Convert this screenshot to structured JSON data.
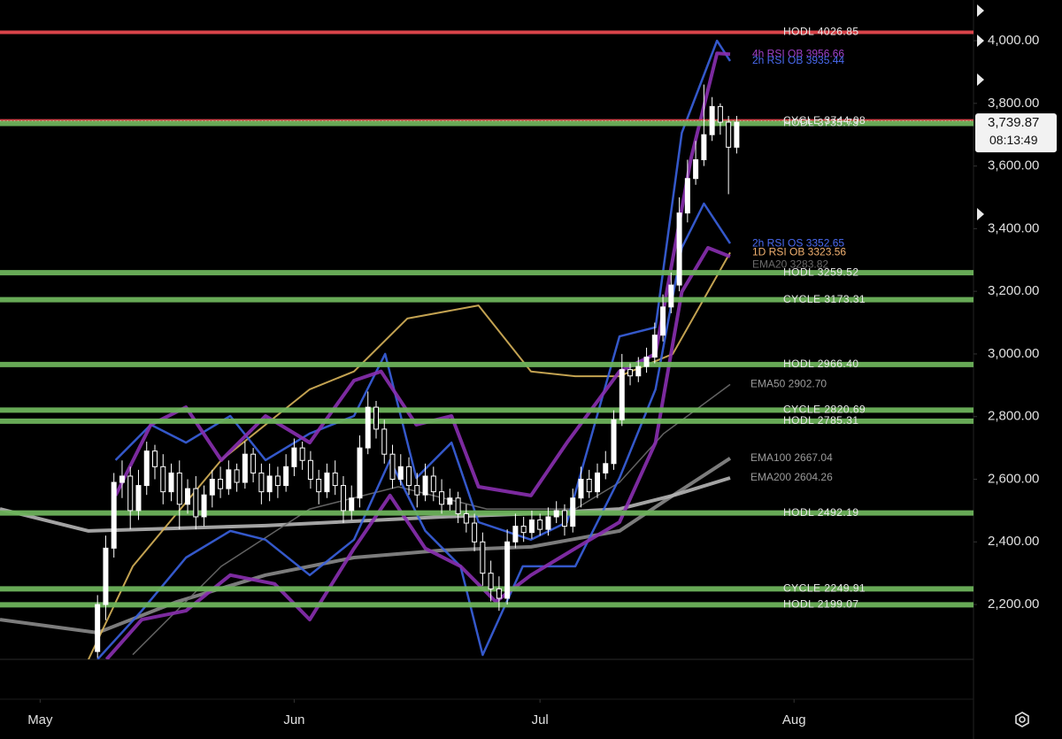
{
  "chart_data": {
    "type": "candlestick",
    "candle_color": "#ffffff",
    "xlim": [
      -4.9,
      113.9
    ],
    "ylim": [
      2025,
      4130
    ],
    "xticks": [
      {
        "value": 0,
        "label": "May"
      },
      {
        "value": 31,
        "label": "Jun"
      },
      {
        "value": 61,
        "label": "Jul"
      },
      {
        "value": 92,
        "label": "Aug"
      }
    ],
    "yticks": [
      {
        "value": 2200,
        "label": "2,200.00"
      },
      {
        "value": 2400,
        "label": "2,400.00"
      },
      {
        "value": 2600,
        "label": "2,600.00"
      },
      {
        "value": 2800,
        "label": "2,800.00"
      },
      {
        "value": 3000,
        "label": "3,000.00"
      },
      {
        "value": 3200,
        "label": "3,200.00"
      },
      {
        "value": 3400,
        "label": "3,400.00"
      },
      {
        "value": 3600,
        "label": "3,600.00"
      },
      {
        "value": 3800,
        "label": "3,800.00"
      },
      {
        "value": 4000,
        "label": "4,000.00"
      }
    ],
    "x": [
      7,
      8,
      9,
      10,
      11,
      12,
      13,
      14,
      15,
      16,
      17,
      18,
      19,
      20,
      21,
      22,
      23,
      24,
      25,
      26,
      27,
      28,
      29,
      30,
      31,
      32,
      33,
      34,
      35,
      36,
      37,
      38,
      39,
      40,
      41,
      42,
      43,
      44,
      45,
      46,
      47,
      48,
      49,
      50,
      51,
      52,
      53,
      54,
      55,
      56,
      57,
      58,
      59,
      60,
      61,
      62,
      63,
      64,
      65,
      66,
      67,
      68,
      69,
      70,
      71,
      72,
      73,
      74,
      75,
      76,
      77,
      78,
      79,
      80,
      81,
      82,
      83,
      84,
      85
    ],
    "open": [
      2050,
      2200,
      2380,
      2590,
      2610,
      2500,
      2580,
      2690,
      2640,
      2560,
      2620,
      2520,
      2570,
      2480,
      2550,
      2600,
      2570,
      2630,
      2590,
      2680,
      2620,
      2560,
      2610,
      2580,
      2640,
      2700,
      2660,
      2600,
      2560,
      2620,
      2580,
      2500,
      2540,
      2700,
      2830,
      2760,
      2680,
      2600,
      2640,
      2580,
      2550,
      2610,
      2560,
      2520,
      2540,
      2490,
      2460,
      2400,
      2300,
      2250,
      2220,
      2400,
      2450,
      2430,
      2470,
      2440,
      2480,
      2500,
      2450,
      2540,
      2600,
      2560,
      2620,
      2650,
      2790,
      2950,
      2930,
      2960,
      2990,
      3060,
      3150,
      3220,
      3450,
      3560,
      3620,
      3700,
      3790,
      3740,
      3660
    ],
    "high": [
      2230,
      2420,
      2620,
      2660,
      2640,
      2630,
      2720,
      2710,
      2680,
      2650,
      2660,
      2600,
      2610,
      2580,
      2630,
      2640,
      2660,
      2650,
      2720,
      2700,
      2650,
      2650,
      2640,
      2680,
      2730,
      2720,
      2690,
      2630,
      2650,
      2660,
      2610,
      2580,
      2740,
      2880,
      2850,
      2790,
      2710,
      2680,
      2670,
      2620,
      2650,
      2640,
      2600,
      2570,
      2560,
      2520,
      2490,
      2430,
      2340,
      2290,
      2440,
      2490,
      2480,
      2500,
      2490,
      2510,
      2530,
      2520,
      2570,
      2640,
      2630,
      2650,
      2690,
      2820,
      3000,
      2970,
      2990,
      3020,
      3100,
      3190,
      3260,
      3500,
      3620,
      3680,
      3860,
      3820,
      3800,
      3760,
      3760
    ],
    "low": [
      2030,
      2150,
      2350,
      2540,
      2440,
      2470,
      2550,
      2600,
      2520,
      2530,
      2440,
      2490,
      2440,
      2450,
      2510,
      2540,
      2550,
      2560,
      2570,
      2590,
      2520,
      2530,
      2540,
      2560,
      2610,
      2630,
      2570,
      2520,
      2540,
      2550,
      2460,
      2470,
      2510,
      2680,
      2730,
      2650,
      2570,
      2580,
      2550,
      2510,
      2530,
      2530,
      2490,
      2500,
      2460,
      2430,
      2370,
      2260,
      2210,
      2180,
      2200,
      2380,
      2400,
      2410,
      2420,
      2420,
      2460,
      2420,
      2430,
      2510,
      2540,
      2540,
      2600,
      2630,
      2770,
      2900,
      2910,
      2940,
      2970,
      3040,
      3130,
      3200,
      3420,
      3540,
      3600,
      3680,
      3700,
      3510,
      3640
    ],
    "close": [
      2200,
      2380,
      2590,
      2610,
      2500,
      2580,
      2690,
      2640,
      2560,
      2620,
      2520,
      2570,
      2480,
      2550,
      2600,
      2570,
      2630,
      2590,
      2680,
      2620,
      2560,
      2610,
      2580,
      2640,
      2700,
      2660,
      2600,
      2560,
      2620,
      2580,
      2500,
      2540,
      2700,
      2830,
      2760,
      2680,
      2600,
      2640,
      2580,
      2550,
      2610,
      2560,
      2520,
      2540,
      2490,
      2460,
      2400,
      2300,
      2250,
      2220,
      2400,
      2450,
      2430,
      2470,
      2440,
      2480,
      2500,
      2450,
      2540,
      2600,
      2560,
      2620,
      2650,
      2790,
      2950,
      2930,
      2960,
      2990,
      3060,
      3150,
      3220,
      3450,
      3560,
      3620,
      3700,
      3790,
      3740,
      3660,
      3739.87
    ],
    "lines": [
      {
        "color": "#8a8a8a",
        "x": [
          -4.9,
          7.0,
          16.7,
          27.5,
          38.3,
          49.1,
          59.9,
          70.7,
          77.2,
          84.2
        ],
        "values": [
          2152,
          2110,
          2209,
          2294,
          2350,
          2373,
          2384,
          2435,
          2548,
          2667.04
        ]
      },
      {
        "color": "#b5b5b5",
        "x": [
          -4.9,
          5.9,
          27.5,
          49.1,
          60,
          70.7,
          77.2,
          84.2
        ],
        "values": [
          2505,
          2435,
          2452,
          2480,
          2490,
          2505,
          2548,
          2604.26
        ]
      },
      {
        "color": "#6d6d6d",
        "x": [
          11.3,
          22.1,
          32.9,
          43.7,
          54.5,
          65.3,
          70.7,
          76.1,
          84.2
        ],
        "values": [
          2040,
          2322,
          2505,
          2576,
          2505,
          2505,
          2590,
          2746,
          2902.7
        ]
      },
      {
        "color": "#d8b45a",
        "x": [
          5.9,
          11.3,
          22.1,
          32.9,
          38.3,
          44.8,
          53.5,
          59.9,
          65.3,
          70.7,
          77.2,
          84.2
        ],
        "values": [
          2025,
          2322,
          2661,
          2887,
          2944,
          3113,
          3155,
          2944,
          2929,
          2929,
          3000,
          3323.56
        ]
      },
      {
        "color": "#3a62e0",
        "x": [
          9.2,
          13.5,
          17.8,
          23.2,
          27.5,
          32.9,
          38.3,
          42.1,
          45.9,
          50.2,
          53.5,
          59.9,
          64.3,
          70.7,
          75.1,
          78.3,
          82.6,
          84.2
        ],
        "values": [
          2661,
          2774,
          2717,
          2802,
          2661,
          2746,
          2802,
          3000,
          2604,
          2717,
          2463,
          2407,
          2463,
          3056,
          3085,
          3706,
          4000,
          3935.44
        ]
      },
      {
        "color": "#3a62e0",
        "x": [
          7.0,
          12.4,
          17.8,
          23.2,
          27.5,
          32.9,
          38.3,
          42.7,
          47.0,
          51.3,
          54.0,
          58.9,
          65.3,
          70.7,
          75.1,
          78.3,
          81.0,
          84.2
        ],
        "values": [
          2025,
          2180,
          2350,
          2435,
          2407,
          2294,
          2407,
          2661,
          2435,
          2322,
          2039,
          2322,
          2322,
          2604,
          2887,
          3339,
          3480,
          3352.65
        ]
      },
      {
        "color": "#8a2fb0",
        "x": [
          9.2,
          13.5,
          17.8,
          22.1,
          27.5,
          32.9,
          38.3,
          41.6,
          45.9,
          50.2,
          53.5,
          59.9,
          64.3,
          70.7,
          75.1,
          79.4,
          82.6,
          84.2
        ],
        "values": [
          2548,
          2774,
          2830,
          2661,
          2802,
          2717,
          2915,
          2944,
          2774,
          2802,
          2576,
          2548,
          2717,
          2944,
          3000,
          3622,
          3960,
          3956.66
        ]
      },
      {
        "color": "#8a2fb0",
        "x": [
          8.1,
          12.4,
          17.8,
          23.2,
          28.6,
          32.9,
          38.3,
          42.7,
          47.0,
          51.3,
          55.6,
          59.9,
          65.3,
          70.7,
          75.1,
          78.3,
          81.5,
          84.2
        ],
        "values": [
          2025,
          2152,
          2180,
          2294,
          2266,
          2152,
          2379,
          2548,
          2379,
          2322,
          2209,
          2294,
          2379,
          2463,
          2717,
          3198,
          3339,
          3311
        ]
      }
    ],
    "levels": [
      {
        "label": "HODL 4026.85",
        "value": 4026.85,
        "color": "#e5484f"
      },
      {
        "label": "CYCLE 3744.08",
        "value": 3744.08,
        "color": "#e5484f"
      },
      {
        "label": "HODL 3735.73",
        "value": 3735.73,
        "color": "#6db35b"
      },
      {
        "label": "HODL 3259.52",
        "value": 3259.52,
        "color": "#6db35b"
      },
      {
        "label": "CYCLE 3173.31",
        "value": 3173.31,
        "color": "#6db35b"
      },
      {
        "label": "HODL 2966.40",
        "value": 2966.4,
        "color": "#6db35b"
      },
      {
        "label": "CYCLE 2820.69",
        "value": 2820.69,
        "color": "#6db35b"
      },
      {
        "label": "HODL 2785.31",
        "value": 2785.31,
        "color": "#6db35b"
      },
      {
        "label": "HODL 2492.19",
        "value": 2492.19,
        "color": "#6db35b"
      },
      {
        "label": "CYCLE 2249.91",
        "value": 2249.91,
        "color": "#6db35b"
      },
      {
        "label": "HODL 2199.07",
        "value": 2199.07,
        "color": "#6db35b"
      }
    ],
    "indicator_labels": [
      {
        "label": "4h RSI OB 3956.66",
        "value": 3956.66,
        "color": "#a040c8"
      },
      {
        "label": "2h RSI OB 3935.44",
        "value": 3935.44,
        "color": "#4a6af0"
      },
      {
        "label": "2h RSI OS 3352.65",
        "value": 3352.65,
        "color": "#4a6af0"
      },
      {
        "label": "1D RSI OB 3323.56",
        "value": 3323.56,
        "color": "#f0b070"
      },
      {
        "label": "EMA20 3283.82",
        "value": 3283.82,
        "color": "#6a6a6a"
      },
      {
        "label": "EMA50 2902.70",
        "value": 2902.7,
        "color": "#9a9a9a"
      },
      {
        "label": "EMA100 2667.04",
        "value": 2667.04,
        "color": "#9a9a9a"
      },
      {
        "label": "EMA200 2604.26",
        "value": 2604.26,
        "color": "#9a9a9a"
      }
    ],
    "last_price": {
      "value": 3739.87,
      "label": "3,739.87"
    },
    "countdown": "08:13:49"
  }
}
